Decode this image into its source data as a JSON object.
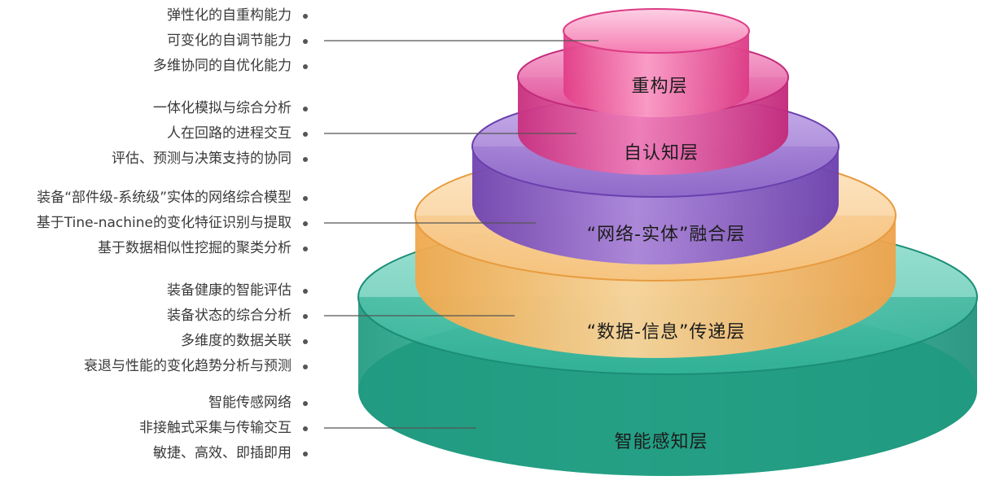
{
  "colors": {
    "sensing": "#2bb49a",
    "transfer": "#f2b560",
    "fusion": "#8d62c4",
    "cognition": "#d94496",
    "reconfig": "#f0609e",
    "text": "#3a3a3a",
    "connector": "#555555"
  },
  "layers": [
    {
      "id": "reconfig",
      "name": "重构层",
      "features": [
        "弹性化的自重构能力",
        "可变化的自调节能力",
        "多维协同的自优化能力"
      ]
    },
    {
      "id": "cognition",
      "name": "自认知层",
      "features": [
        "一体化模拟与综合分析",
        "人在回路的进程交互",
        "评估、预测与决策支持的协同"
      ]
    },
    {
      "id": "fusion",
      "name": "“网络-实体”融合层",
      "features": [
        "装备“部件级-系统级”实体的网络综合模型",
        "基于Tine-nachine的变化特征识别与提取",
        "基于数据相似性挖掘的聚类分析"
      ]
    },
    {
      "id": "transfer",
      "name": "“数据-信息”传递层",
      "features": [
        "装备健康的智能评估",
        "装备状态的综合分析",
        "多维度的数据关联",
        "衰退与性能的变化趋势分析与预测"
      ]
    },
    {
      "id": "sensing",
      "name": "智能感知层",
      "features": [
        "智能传感网络",
        "非接触式采集与传输交互",
        "敏捷、高效、即插即用"
      ]
    }
  ]
}
